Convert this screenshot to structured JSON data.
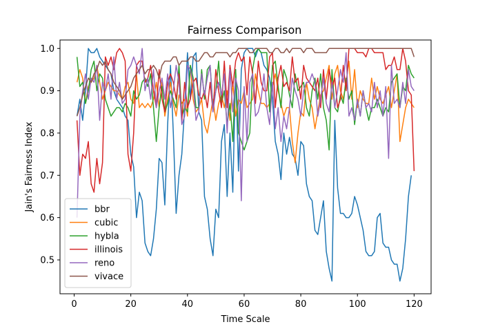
{
  "chart_data": {
    "type": "line",
    "title": "Fairness Comparison",
    "xlabel": "Time Scale",
    "ylabel": "Jain's Fairness Index",
    "xlim": [
      -5,
      126
    ],
    "ylim": [
      0.42,
      1.02
    ],
    "xticks": [
      0,
      20,
      40,
      60,
      80,
      100,
      120
    ],
    "yticks": [
      0.5,
      0.6,
      0.7,
      0.8,
      0.9,
      1.0
    ],
    "ytick_labels": [
      "0.5",
      "0.6",
      "0.7",
      "0.8",
      "0.9",
      "1.0"
    ],
    "grid": false,
    "legend": "lower-left",
    "x_start": 1,
    "x_step": 1,
    "series": [
      {
        "name": "bbr",
        "color": "#1f77b4",
        "values": [
          0.84,
          0.88,
          0.83,
          0.9,
          1.0,
          0.99,
          0.99,
          1.0,
          0.98,
          0.97,
          0.96,
          0.95,
          0.94,
          0.9,
          0.88,
          0.87,
          0.86,
          0.84,
          0.83,
          0.75,
          0.72,
          0.6,
          0.66,
          0.64,
          0.54,
          0.52,
          0.51,
          0.55,
          0.62,
          0.74,
          0.73,
          0.63,
          0.82,
          0.96,
          0.8,
          0.61,
          0.7,
          0.75,
          0.86,
          0.99,
          0.88,
          0.98,
          0.99,
          0.85,
          0.83,
          0.65,
          0.62,
          0.55,
          0.51,
          0.62,
          0.6,
          0.78,
          0.82,
          0.65,
          0.8,
          0.66,
          0.95,
          0.71,
          0.95,
          0.99,
          1.0,
          1.0,
          1.0,
          0.98,
          1.0,
          0.99,
          0.96,
          0.95,
          0.93,
          0.88,
          0.78,
          0.75,
          0.69,
          0.8,
          0.75,
          0.79,
          0.75,
          0.74,
          0.7,
          0.78,
          0.77,
          0.68,
          0.65,
          0.64,
          0.57,
          0.56,
          0.6,
          0.64,
          0.52,
          0.48,
          0.45,
          0.83,
          0.67,
          0.61,
          0.61,
          0.6,
          0.6,
          0.61,
          0.65,
          0.63,
          0.6,
          0.57,
          0.52,
          0.51,
          0.51,
          0.52,
          0.6,
          0.61,
          0.54,
          0.53,
          0.53,
          0.5,
          0.49,
          0.49,
          0.45,
          0.48,
          0.55,
          0.65,
          0.7
        ]
      },
      {
        "name": "cubic",
        "color": "#ff7f0e",
        "values": [
          0.92,
          0.95,
          0.93,
          0.87,
          0.91,
          0.92,
          0.93,
          0.96,
          0.92,
          0.88,
          0.9,
          0.92,
          0.91,
          0.9,
          0.9,
          0.89,
          0.88,
          0.91,
          0.92,
          0.88,
          0.87,
          0.94,
          0.86,
          0.87,
          0.86,
          0.87,
          0.86,
          0.88,
          0.92,
          0.86,
          0.92,
          0.84,
          0.88,
          0.92,
          0.87,
          0.84,
          0.89,
          0.87,
          0.88,
          0.84,
          0.96,
          0.88,
          0.85,
          0.86,
          0.88,
          0.82,
          0.8,
          0.84,
          0.88,
          0.83,
          0.87,
          0.89,
          0.86,
          0.9,
          0.83,
          0.92,
          0.84,
          0.88,
          0.87,
          0.9,
          0.86,
          0.87,
          0.88,
          0.94,
          0.9,
          0.87,
          0.87,
          0.86,
          0.87,
          0.91,
          0.94,
          0.9,
          0.87,
          0.84,
          0.86,
          0.86,
          0.78,
          0.73,
          0.8,
          0.85,
          0.84,
          0.92,
          0.88,
          0.86,
          0.81,
          0.85,
          0.89,
          0.9,
          0.93,
          0.96,
          0.88,
          0.94,
          0.96,
          0.9,
          0.88,
          0.92,
          0.97,
          0.88,
          0.95,
          0.86,
          0.9,
          0.88,
          0.87,
          0.87,
          0.93,
          0.88,
          0.91,
          0.88,
          0.87,
          0.89,
          0.91,
          0.86,
          0.9,
          0.94,
          0.78,
          0.82,
          0.86,
          0.88,
          0.87,
          0.86
        ]
      },
      {
        "name": "hybla",
        "color": "#2ca02c",
        "values": [
          0.98,
          0.91,
          0.92,
          0.87,
          0.9,
          0.95,
          0.97,
          0.9,
          0.94,
          0.93,
          0.88,
          0.86,
          0.84,
          0.85,
          0.86,
          0.86,
          0.85,
          0.87,
          0.86,
          0.84,
          0.9,
          0.88,
          0.89,
          0.92,
          0.93,
          0.91,
          0.94,
          0.86,
          0.78,
          0.86,
          0.91,
          0.85,
          0.87,
          0.9,
          0.88,
          0.86,
          0.96,
          0.84,
          0.86,
          0.85,
          0.96,
          0.93,
          0.86,
          0.86,
          0.95,
          0.88,
          0.95,
          0.96,
          0.86,
          0.9,
          0.97,
          0.87,
          0.9,
          0.82,
          0.87,
          0.78,
          0.95,
          0.8,
          0.78,
          0.76,
          0.78,
          0.8,
          0.95,
          0.99,
          1.0,
          0.99,
          0.99,
          0.99,
          0.85,
          0.96,
          0.97,
          0.91,
          0.86,
          0.95,
          0.93,
          0.89,
          0.86,
          0.94,
          0.9,
          0.91,
          0.92,
          0.86,
          0.84,
          0.9,
          0.93,
          0.88,
          0.94,
          0.86,
          0.83,
          0.76,
          0.95,
          0.86,
          0.85,
          0.89,
          0.87,
          0.93,
          0.88,
          0.9,
          0.82,
          0.88,
          0.84,
          0.9,
          0.86,
          0.83,
          0.86,
          0.86,
          0.88,
          0.86,
          0.84,
          0.86,
          0.85,
          0.92,
          0.93,
          0.94,
          0.86,
          0.91,
          0.9,
          0.96,
          0.94,
          0.93
        ]
      },
      {
        "name": "illinois",
        "color": "#d62728",
        "values": [
          0.83,
          0.7,
          0.75,
          0.74,
          0.78,
          0.68,
          0.66,
          0.74,
          0.68,
          0.73,
          0.98,
          0.96,
          0.98,
          0.95,
          0.99,
          1.0,
          0.99,
          0.97,
          0.75,
          0.71,
          0.8,
          0.96,
          0.97,
          0.97,
          0.92,
          0.93,
          0.96,
          0.9,
          0.86,
          0.95,
          0.88,
          0.85,
          0.92,
          0.94,
          0.92,
          0.88,
          0.94,
          0.83,
          0.92,
          0.86,
          0.88,
          0.92,
          0.93,
          0.89,
          0.88,
          0.9,
          0.86,
          0.92,
          0.85,
          0.95,
          0.9,
          0.86,
          0.97,
          0.86,
          0.96,
          0.91,
          0.97,
          0.99,
          0.97,
          0.98,
          0.89,
          0.98,
          0.94,
          0.87,
          0.97,
          0.92,
          0.9,
          0.9,
          0.98,
          0.99,
          0.86,
          0.93,
          0.96,
          0.91,
          0.92,
          0.9,
          0.98,
          0.92,
          0.93,
          0.88,
          0.96,
          0.93,
          0.92,
          0.91,
          0.9,
          0.93,
          0.86,
          0.95,
          0.88,
          0.95,
          0.91,
          0.93,
          0.86,
          0.88,
          0.96,
          0.9,
          1.0,
          1.0,
          1.0,
          0.99,
          0.99,
          0.99,
          0.98,
          1.0,
          1.0,
          0.99,
          0.99,
          0.99,
          0.99,
          0.95,
          0.96,
          0.96,
          0.98,
          0.95,
          0.95,
          1.0,
          0.97,
          0.9,
          0.89,
          0.71
        ]
      },
      {
        "name": "reno",
        "color": "#9467bd",
        "values": [
          0.6,
          0.84,
          0.9,
          0.94,
          0.88,
          0.93,
          0.92,
          0.96,
          0.83,
          0.92,
          0.9,
          0.94,
          0.88,
          0.98,
          0.88,
          0.92,
          0.87,
          0.88,
          0.95,
          0.96,
          0.98,
          0.96,
          0.94,
          1.0,
          0.9,
          0.93,
          0.88,
          0.95,
          0.86,
          0.9,
          0.93,
          0.88,
          0.94,
          0.86,
          0.9,
          0.96,
          0.92,
          0.82,
          0.84,
          0.96,
          0.95,
          0.92,
          0.83,
          0.85,
          0.94,
          0.89,
          0.93,
          0.96,
          0.85,
          0.9,
          0.92,
          0.89,
          0.94,
          0.8,
          0.95,
          0.85,
          0.93,
          0.9,
          0.64,
          0.91,
          0.78,
          0.92,
          0.94,
          0.84,
          0.85,
          0.88,
          0.94,
          0.86,
          0.82,
          0.92,
          0.81,
          0.86,
          0.78,
          0.84,
          0.81,
          0.86,
          0.93,
          0.9,
          0.88,
          0.84,
          0.9,
          0.92,
          0.92,
          0.94,
          0.92,
          0.84,
          0.88,
          0.93,
          0.87,
          0.85,
          0.92,
          0.86,
          0.9,
          0.95,
          0.92,
          0.99,
          0.84,
          0.86,
          0.83,
          0.88,
          0.84,
          0.9,
          0.86,
          0.87,
          0.85,
          0.92,
          0.86,
          0.9,
          0.84,
          0.91,
          0.74,
          0.96,
          0.87,
          0.88,
          0.86,
          0.92,
          0.87,
          0.95,
          0.91,
          0.9
        ]
      },
      {
        "name": "vivace",
        "color": "#8c564b",
        "values": [
          0.84,
          0.86,
          0.89,
          0.91,
          0.93,
          0.92,
          0.94,
          0.95,
          0.97,
          0.96,
          0.97,
          0.95,
          0.94,
          0.92,
          0.91,
          0.9,
          0.88,
          0.89,
          0.9,
          0.91,
          0.93,
          0.94,
          0.95,
          0.96,
          0.94,
          0.95,
          0.95,
          0.96,
          0.95,
          0.93,
          0.96,
          0.97,
          0.97,
          0.97,
          0.98,
          0.98,
          0.96,
          0.97,
          0.97,
          0.97,
          0.98,
          0.98,
          0.97,
          0.97,
          0.98,
          0.99,
          0.99,
          0.98,
          0.98,
          0.99,
          0.99,
          0.99,
          0.99,
          0.99,
          0.98,
          0.99,
          0.99,
          1.0,
          1.0,
          1.0,
          1.0,
          0.99,
          0.99,
          1.0,
          1.0,
          1.0,
          1.0,
          1.0,
          0.99,
          0.99,
          1.0,
          1.0,
          0.99,
          0.99,
          1.0,
          0.99,
          1.0,
          1.0,
          1.0,
          1.0,
          0.99,
          1.0,
          1.0,
          1.0,
          0.99,
          0.99,
          0.99,
          0.99,
          0.99,
          1.0,
          1.0,
          1.0,
          1.0,
          1.0,
          1.0,
          1.0,
          1.0,
          1.0,
          1.0,
          1.0,
          1.0,
          1.0,
          1.0,
          1.0,
          1.0,
          1.0,
          1.0,
          1.0,
          1.0,
          1.0,
          1.0,
          1.0,
          1.0,
          1.0,
          1.0,
          1.0,
          1.0,
          1.0,
          1.0,
          0.98
        ]
      }
    ]
  }
}
